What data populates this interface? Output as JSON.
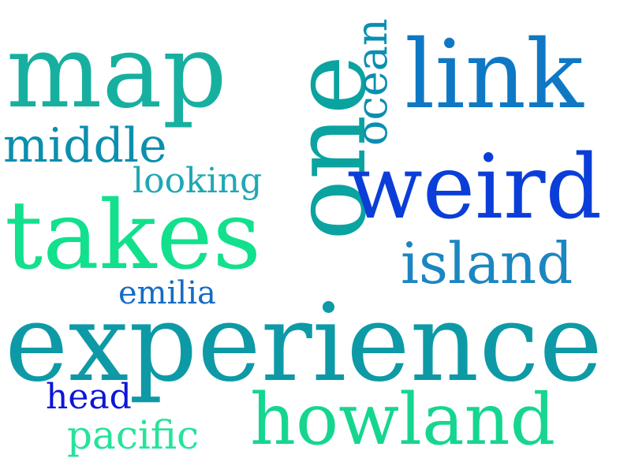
{
  "words": {
    "map": {
      "text": "map",
      "color": "#17b0a0"
    },
    "link": {
      "text": "link",
      "color": "#0f78c4"
    },
    "one": {
      "text": "one",
      "color": "#0aa3a0"
    },
    "ocean": {
      "text": "ocean",
      "color": "#0a8fb1"
    },
    "middle": {
      "text": "middle",
      "color": "#0b8fae"
    },
    "looking": {
      "text": "looking",
      "color": "#1fa8b4"
    },
    "weird": {
      "text": "weird",
      "color": "#0b3ed8"
    },
    "takes": {
      "text": "takes",
      "color": "#12e08d"
    },
    "island": {
      "text": "island",
      "color": "#1b86c1"
    },
    "emilia": {
      "text": "emilia",
      "color": "#156cc3"
    },
    "experience": {
      "text": "experience",
      "color": "#0d9aa6"
    },
    "head": {
      "text": "head",
      "color": "#0b16d6"
    },
    "pacific": {
      "text": "pacific",
      "color": "#26e39a"
    },
    "howland": {
      "text": "howland",
      "color": "#16d68f"
    }
  }
}
